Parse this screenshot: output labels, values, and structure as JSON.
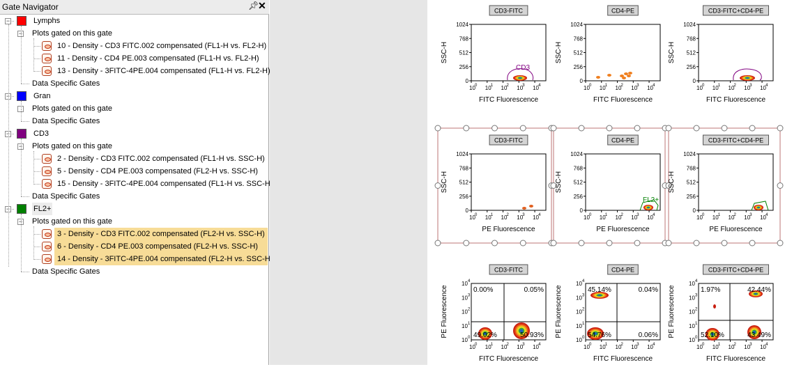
{
  "navigator": {
    "title": "Gate Navigator",
    "pin_icon": "pin-icon",
    "close_icon": "close-icon",
    "gates": [
      {
        "name": "Lymphs",
        "color": "#ff0000",
        "plots_label": "Plots gated on this gate",
        "plots": [
          "10 - Density - CD3 FITC.002 compensated (FL1-H vs. FL2-H)",
          "11 - Density - CD4 PE.003 compensated (FL1-H vs. FL2-H)",
          "13 - Density - 3FITC-4PE.004 compensated (FL1-H vs. FL2-H)"
        ],
        "data_specific_label": "Data Specific Gates"
      },
      {
        "name": "Gran",
        "color": "#0000ff",
        "plots_label": "Plots gated on this gate",
        "plots": [],
        "data_specific_label": "Data Specific Gates"
      },
      {
        "name": "CD3",
        "color": "#800080",
        "plots_label": "Plots gated on this gate",
        "plots": [
          "2 - Density - CD3 FITC.002 compensated (FL1-H vs. SSC-H)",
          "5 - Density - CD4 PE.003 compensated (FL2-H vs. SSC-H)",
          "15 - Density - 3FITC-4PE.004 compensated (FL1-H vs. SSC-H)"
        ],
        "data_specific_label": "Data Specific Gates"
      },
      {
        "name": "FL2+",
        "color": "#008000",
        "plots_label": "Plots gated on this gate",
        "plots": [
          "3 - Density - CD3 FITC.002 compensated (FL2-H vs. SSC-H)",
          "6 - Density - CD4 PE.003 compensated (FL2-H vs. SSC-H)",
          "14 - Density - 3FITC-4PE.004 compensated (FL2-H vs. SSC-H)"
        ],
        "data_specific_label": "Data Specific Gates"
      }
    ]
  },
  "layout_grid": {
    "row1": {
      "titles": [
        "CD3-FITC",
        "CD4-PE",
        "CD3-FITC+CD4-PE"
      ],
      "xlabel": "FITC Fluorescence",
      "ylabel": "SSC-H",
      "yticks": [
        "1024",
        "768",
        "512",
        "256",
        "0"
      ],
      "gate_label": "CD3"
    },
    "row2": {
      "titles": [
        "CD3-FITC",
        "CD4-PE",
        "CD3-FITC+CD4-PE"
      ],
      "xlabel": "PE Fluorescence",
      "ylabel": "SSC-H",
      "yticks": [
        "1024",
        "768",
        "512",
        "256",
        "0"
      ],
      "gate_label": "FL2+"
    },
    "row3": {
      "titles": [
        "CD3-FITC",
        "CD4-PE",
        "CD3-FITC+CD4-PE"
      ],
      "xlabel": "FITC Fluorescence",
      "ylabel": "PE Fluorescence",
      "quadrants": [
        [
          "0.00%",
          "0.05%",
          "49.02%",
          "50.93%"
        ],
        [
          "45.14%",
          "0.04%",
          "54.76%",
          "0.06%"
        ],
        [
          "1.97%",
          "42.44%",
          "52.10%",
          "43.49%"
        ]
      ]
    }
  }
}
